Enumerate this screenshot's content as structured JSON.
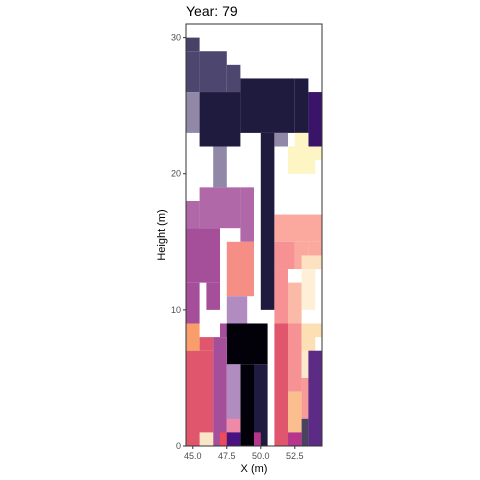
{
  "chart_data": {
    "type": "heatmap",
    "title": "Year: 79",
    "xlabel": "X (m)",
    "ylabel": "Height (m)",
    "xlim": [
      44.5,
      54.5
    ],
    "ylim": [
      0,
      31
    ],
    "x_ticks": [
      45.0,
      47.5,
      50.0,
      52.5
    ],
    "x_tick_labels": [
      "45.0",
      "47.5",
      "50.0",
      "52.5"
    ],
    "y_ticks": [
      0,
      10,
      20,
      30
    ],
    "y_tick_labels": [
      "0",
      "10",
      "20",
      "30"
    ],
    "grid": false,
    "legend": "none",
    "cells": [
      {
        "x": [
          44.5,
          45.5
        ],
        "y": [
          29,
          30
        ],
        "color": "#4a4168"
      },
      {
        "x": [
          44.5,
          45.5
        ],
        "y": [
          26,
          29
        ],
        "color": "#4d4770"
      },
      {
        "x": [
          45.5,
          47.5
        ],
        "y": [
          26,
          29
        ],
        "color": "#4d4770"
      },
      {
        "x": [
          47.5,
          48.5
        ],
        "y": [
          26,
          28
        ],
        "color": "#4d4770"
      },
      {
        "x": [
          44.5,
          45.5
        ],
        "y": [
          23,
          26
        ],
        "color": "#9088a6"
      },
      {
        "x": [
          45.5,
          48.5
        ],
        "y": [
          22,
          26
        ],
        "color": "#1f1b3e"
      },
      {
        "x": [
          48.5,
          52.5
        ],
        "y": [
          23,
          27
        ],
        "color": "#1f1b3e"
      },
      {
        "x": [
          52.5,
          53.5
        ],
        "y": [
          23,
          27
        ],
        "color": "#1f1b3e"
      },
      {
        "x": [
          53.5,
          54.5
        ],
        "y": [
          22,
          26
        ],
        "color": "#3a1468"
      },
      {
        "x": [
          50.0,
          51.0
        ],
        "y": [
          10,
          23
        ],
        "color": "#1f1b3e"
      },
      {
        "x": [
          51.0,
          52.0
        ],
        "y": [
          22,
          23
        ],
        "color": "#9088a6"
      },
      {
        "x": [
          46.5,
          47.5
        ],
        "y": [
          19,
          22
        ],
        "color": "#9088a6"
      },
      {
        "x": [
          52.5,
          53.5
        ],
        "y": [
          22,
          23
        ],
        "color": "#fdf5c4"
      },
      {
        "x": [
          52.0,
          54.0
        ],
        "y": [
          20,
          22
        ],
        "color": "#fdf5c4"
      },
      {
        "x": [
          53.5,
          54.5
        ],
        "y": [
          21,
          22
        ],
        "color": "#fdf5c4"
      },
      {
        "x": [
          44.5,
          45.5
        ],
        "y": [
          16,
          18
        ],
        "color": "#b068a8"
      },
      {
        "x": [
          45.5,
          48.5
        ],
        "y": [
          16,
          19
        ],
        "color": "#b068a8"
      },
      {
        "x": [
          48.5,
          49.5
        ],
        "y": [
          15,
          19
        ],
        "color": "#b068a8"
      },
      {
        "x": [
          44.5,
          47.0
        ],
        "y": [
          12,
          16
        ],
        "color": "#a54f9a"
      },
      {
        "x": [
          44.5,
          45.5
        ],
        "y": [
          9,
          12
        ],
        "color": "#a54f9a"
      },
      {
        "x": [
          46.0,
          47.0
        ],
        "y": [
          10,
          12
        ],
        "color": "#a54f9a"
      },
      {
        "x": [
          47.5,
          49.5
        ],
        "y": [
          11,
          15
        ],
        "color": "#f58f86"
      },
      {
        "x": [
          51.0,
          54.5
        ],
        "y": [
          15,
          17
        ],
        "color": "#fba99e"
      },
      {
        "x": [
          51.0,
          52.5
        ],
        "y": [
          13,
          15
        ],
        "color": "#f69293"
      },
      {
        "x": [
          52.5,
          53.5
        ],
        "y": [
          13,
          15
        ],
        "color": "#fba99e"
      },
      {
        "x": [
          53.5,
          54.5
        ],
        "y": [
          13,
          15
        ],
        "color": "#fba99e"
      },
      {
        "x": [
          51.0,
          52.0
        ],
        "y": [
          9,
          13
        ],
        "color": "#f69293"
      },
      {
        "x": [
          52.0,
          53.0
        ],
        "y": [
          9,
          12
        ],
        "color": "#fbb9a8"
      },
      {
        "x": [
          53.0,
          54.0
        ],
        "y": [
          10,
          13
        ],
        "color": "#fef0d6"
      },
      {
        "x": [
          53.0,
          54.5
        ],
        "y": [
          13,
          14
        ],
        "color": "#fde2c2"
      },
      {
        "x": [
          47.5,
          49.0
        ],
        "y": [
          9,
          11
        ],
        "color": "#b08cc0"
      },
      {
        "x": [
          47.0,
          49.5
        ],
        "y": [
          8,
          9
        ],
        "color": "#a54f9a"
      },
      {
        "x": [
          47.5,
          50.5
        ],
        "y": [
          6,
          9
        ],
        "color": "#02010a"
      },
      {
        "x": [
          48.5,
          49.5
        ],
        "y": [
          0,
          6
        ],
        "color": "#02010a"
      },
      {
        "x": [
          44.5,
          45.5
        ],
        "y": [
          7,
          9
        ],
        "color": "#f99e6a"
      },
      {
        "x": [
          44.5,
          46.5
        ],
        "y": [
          0,
          7
        ],
        "color": "#e0576d"
      },
      {
        "x": [
          45.5,
          46.5
        ],
        "y": [
          7,
          8
        ],
        "color": "#e0576d"
      },
      {
        "x": [
          46.5,
          47.5
        ],
        "y": [
          0,
          8
        ],
        "color": "#a54f9a"
      },
      {
        "x": [
          45.5,
          46.5
        ],
        "y": [
          0,
          1
        ],
        "color": "#fbe5c8"
      },
      {
        "x": [
          47.0,
          48.0
        ],
        "y": [
          0,
          1
        ],
        "color": "#ea4c5c"
      },
      {
        "x": [
          47.5,
          48.5
        ],
        "y": [
          1,
          6
        ],
        "color": "#b08cc0"
      },
      {
        "x": [
          47.5,
          48.5
        ],
        "y": [
          1,
          2
        ],
        "color": "#ee8aa8"
      },
      {
        "x": [
          47.5,
          48.5
        ],
        "y": [
          0,
          1
        ],
        "color": "#4a1280"
      },
      {
        "x": [
          49.5,
          50.5
        ],
        "y": [
          0,
          6
        ],
        "color": "#1f1b3e"
      },
      {
        "x": [
          49.5,
          50.0
        ],
        "y": [
          0,
          1
        ],
        "color": "#b7368c"
      },
      {
        "x": [
          51.0,
          52.0
        ],
        "y": [
          0,
          9
        ],
        "color": "#e0576d"
      },
      {
        "x": [
          52.0,
          53.0
        ],
        "y": [
          4,
          9
        ],
        "color": "#f69293"
      },
      {
        "x": [
          52.0,
          53.0
        ],
        "y": [
          1,
          4
        ],
        "color": "#fbbf8f"
      },
      {
        "x": [
          52.0,
          53.0
        ],
        "y": [
          0,
          1
        ],
        "color": "#b7368c"
      },
      {
        "x": [
          53.0,
          54.0
        ],
        "y": [
          7,
          9
        ],
        "color": "#fddfb4"
      },
      {
        "x": [
          53.0,
          54.0
        ],
        "y": [
          5,
          7
        ],
        "color": "#fbe9cc"
      },
      {
        "x": [
          53.0,
          54.0
        ],
        "y": [
          2,
          5
        ],
        "color": "#f69a9a"
      },
      {
        "x": [
          53.0,
          53.5
        ],
        "y": [
          0,
          2
        ],
        "color": "#4a4360"
      },
      {
        "x": [
          53.5,
          54.5
        ],
        "y": [
          0,
          7
        ],
        "color": "#5c2b86"
      },
      {
        "x": [
          53.5,
          54.5
        ],
        "y": [
          8,
          9
        ],
        "color": "#fddfb4"
      }
    ]
  }
}
